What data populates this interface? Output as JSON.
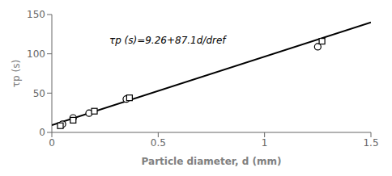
{
  "chart_data": {
    "type": "scatter",
    "x_label": "Particle diameter, d (mm)",
    "y_label": "τp (s)",
    "xlim": [
      0,
      1.5
    ],
    "ylim": [
      0,
      150
    ],
    "xticks": [
      0,
      0.5,
      1,
      1.5
    ],
    "yticks": [
      0,
      50,
      100,
      150
    ],
    "grid": false,
    "series": [
      {
        "type": "line",
        "color": "#000000",
        "x": [
          0,
          1.5
        ],
        "values": [
          9.26,
          139.91
        ]
      },
      {
        "type": "scatter",
        "marker": "circle",
        "color": "#000000",
        "x": [
          0.05,
          0.1,
          0.175,
          0.35,
          1.25
        ],
        "values": [
          10.5,
          18.5,
          24.5,
          42.5,
          109
        ]
      },
      {
        "type": "scatter",
        "marker": "square",
        "color": "#000000",
        "x": [
          0.04,
          0.1,
          0.2,
          0.365,
          1.27
        ],
        "values": [
          8.5,
          15.5,
          27,
          44,
          116
        ]
      }
    ],
    "annotations": [
      {
        "text": "τp (s)=9.26+87.1d/dref",
        "x": 0.27,
        "y": 122
      }
    ]
  }
}
